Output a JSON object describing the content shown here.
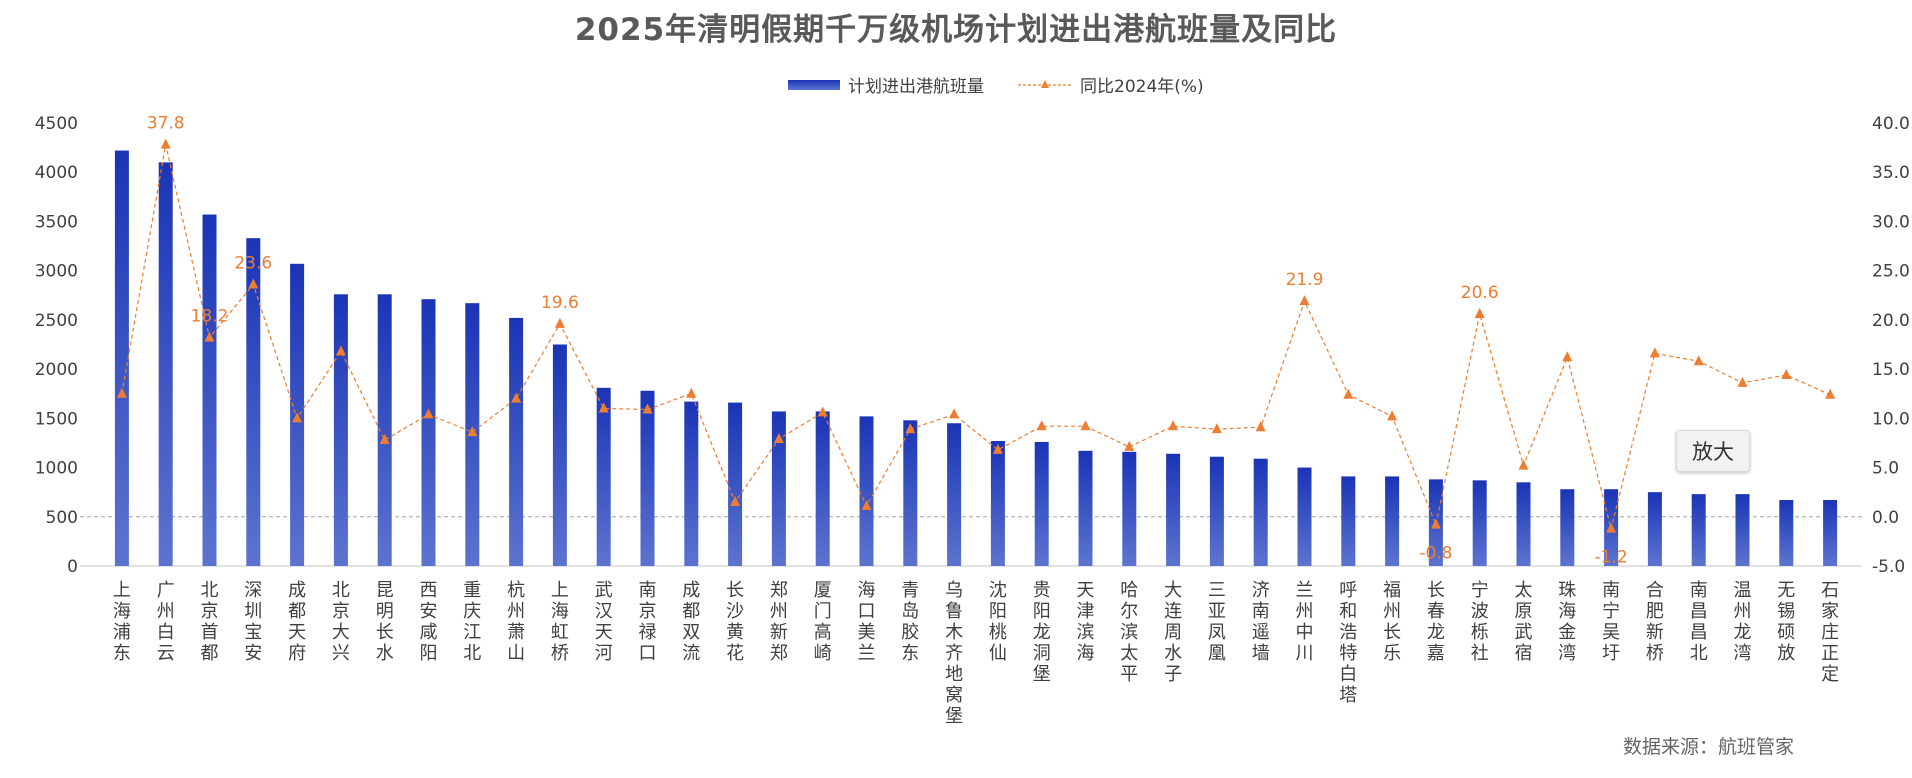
{
  "title": "2025年清明假期千万级机场计划进出港航班量及同比",
  "legend": {
    "bar": "计划进出港航班量",
    "line": "同比2024年(%)"
  },
  "zoom_label": "放大",
  "source": "数据来源：航班管家",
  "colors": {
    "bar_top": "#1a34b6",
    "bar_bottom": "#5c74cf",
    "line": "#ed7d31",
    "axis_text": "#404040"
  },
  "chart_data": {
    "type": "bar",
    "categories": [
      "上海浦东",
      "广州白云",
      "北京首都",
      "深圳宝安",
      "成都天府",
      "北京大兴",
      "昆明长水",
      "西安咸阳",
      "重庆江北",
      "杭州萧山",
      "上海虹桥",
      "武汉天河",
      "南京禄口",
      "成都双流",
      "长沙黄花",
      "郑州新郑",
      "厦门高崎",
      "海口美兰",
      "青岛胶东",
      "乌鲁木齐地窝堡",
      "沈阳桃仙",
      "贵阳龙洞堡",
      "天津滨海",
      "哈尔滨太平",
      "大连周水子",
      "三亚凤凰",
      "济南遥墙",
      "兰州中川",
      "呼和浩特白塔",
      "福州长乐",
      "长春龙嘉",
      "宁波栎社",
      "太原武宿",
      "珠海金湾",
      "南宁吴圩",
      "合肥新桥",
      "南昌昌北",
      "温州龙湾",
      "无锡硕放",
      "石家庄正定"
    ],
    "series": [
      {
        "name": "计划进出港航班量",
        "type": "bar",
        "axis": "left",
        "values": [
          4220,
          4100,
          3570,
          3330,
          3070,
          2760,
          2760,
          2710,
          2670,
          2520,
          2250,
          1810,
          1780,
          1670,
          1660,
          1570,
          1570,
          1520,
          1480,
          1450,
          1270,
          1260,
          1170,
          1160,
          1140,
          1110,
          1090,
          1000,
          910,
          910,
          880,
          870,
          850,
          780,
          780,
          750,
          730,
          730,
          670,
          670
        ]
      },
      {
        "name": "同比2024年(%)",
        "type": "line",
        "axis": "right",
        "values": [
          12.5,
          37.8,
          18.2,
          23.6,
          10.0,
          16.8,
          7.8,
          10.4,
          8.6,
          12.0,
          19.6,
          11.0,
          10.9,
          12.5,
          1.5,
          7.9,
          10.6,
          1.1,
          8.9,
          10.4,
          6.8,
          9.2,
          9.2,
          7.1,
          9.2,
          8.9,
          9.1,
          21.9,
          12.4,
          10.2,
          -0.8,
          20.6,
          5.2,
          16.2,
          -1.2,
          16.6,
          15.8,
          13.6,
          14.4,
          12.4
        ],
        "labels": [
          "",
          "37.8",
          "18.2",
          "23.6",
          "",
          "",
          "",
          "",
          "",
          "",
          "19.6",
          "",
          "",
          "",
          "",
          "",
          "",
          "",
          "",
          "",
          "",
          "",
          "",
          "",
          "",
          "",
          "",
          "21.9",
          "",
          "",
          "-0.8",
          "20.6",
          "",
          "",
          "-1.2",
          "",
          "",
          "",
          "",
          ""
        ]
      }
    ],
    "y_left": {
      "min": 0,
      "max": 4500,
      "step": 500,
      "ticks": [
        "0",
        "500",
        "1000",
        "1500",
        "2000",
        "2500",
        "3000",
        "3500",
        "4000",
        "4500"
      ]
    },
    "y_right": {
      "min": -5,
      "max": 40,
      "step": 5,
      "ticks": [
        "-5.0",
        "0.0",
        "5.0",
        "10.0",
        "15.0",
        "20.0",
        "25.0",
        "30.0",
        "35.0",
        "40.0"
      ]
    },
    "zero_reference_line": 500,
    "grid": false,
    "legend_position": "top"
  }
}
